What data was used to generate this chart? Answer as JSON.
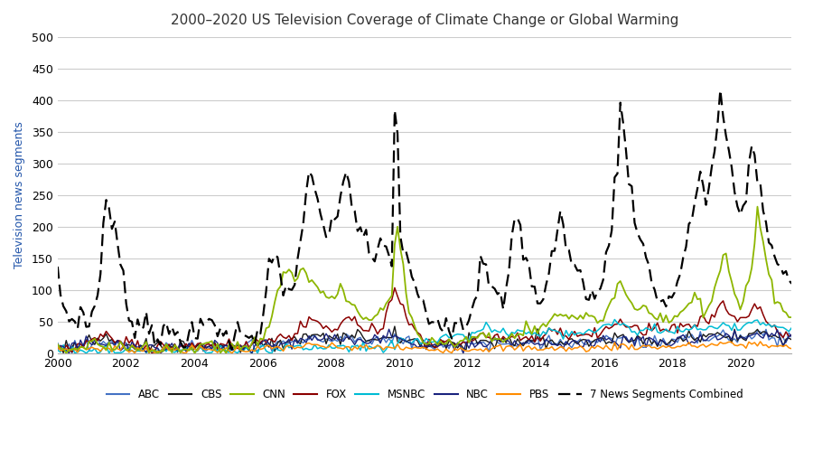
{
  "title": "2000–2020 US Television Coverage of Climate Change or Global Warming",
  "ylabel": "Television news segments",
  "xlim": [
    2000,
    2021.5
  ],
  "ylim": [
    0,
    500
  ],
  "yticks": [
    0,
    50,
    100,
    150,
    200,
    250,
    300,
    350,
    400,
    450,
    500
  ],
  "xticks": [
    2000,
    2002,
    2004,
    2006,
    2008,
    2010,
    2012,
    2014,
    2016,
    2018,
    2020
  ],
  "background_color": "#ffffff",
  "grid_color": "#cccccc",
  "series": {
    "ABC": {
      "color": "#4472c4",
      "linestyle": "-",
      "linewidth": 1.0
    },
    "CBS": {
      "color": "#1a1a1a",
      "linestyle": "-",
      "linewidth": 1.0
    },
    "CNN": {
      "color": "#8db600",
      "linestyle": "-",
      "linewidth": 1.3
    },
    "FOX": {
      "color": "#8b0000",
      "linestyle": "-",
      "linewidth": 1.1
    },
    "MSNBC": {
      "color": "#00bcd4",
      "linestyle": "-",
      "linewidth": 1.1
    },
    "NBC": {
      "color": "#1a237e",
      "linestyle": "-",
      "linewidth": 1.0
    },
    "PBS": {
      "color": "#ff8c00",
      "linestyle": "-",
      "linewidth": 1.1
    },
    "7 News Segments Combined": {
      "color": "#000000",
      "linestyle": "--",
      "linewidth": 1.6
    }
  },
  "legend_labels": [
    "ABC",
    "CBS",
    "CNN",
    "FOX",
    "MSNBC",
    "NBC",
    "PBS",
    "7 News Segments Combined"
  ],
  "legend_colors": [
    "#4472c4",
    "#1a1a1a",
    "#8db600",
    "#8b0000",
    "#00bcd4",
    "#1a237e",
    "#ff8c00",
    "#000000"
  ],
  "legend_linestyles": [
    "-",
    "-",
    "-",
    "-",
    "-",
    "-",
    "-",
    "--"
  ]
}
